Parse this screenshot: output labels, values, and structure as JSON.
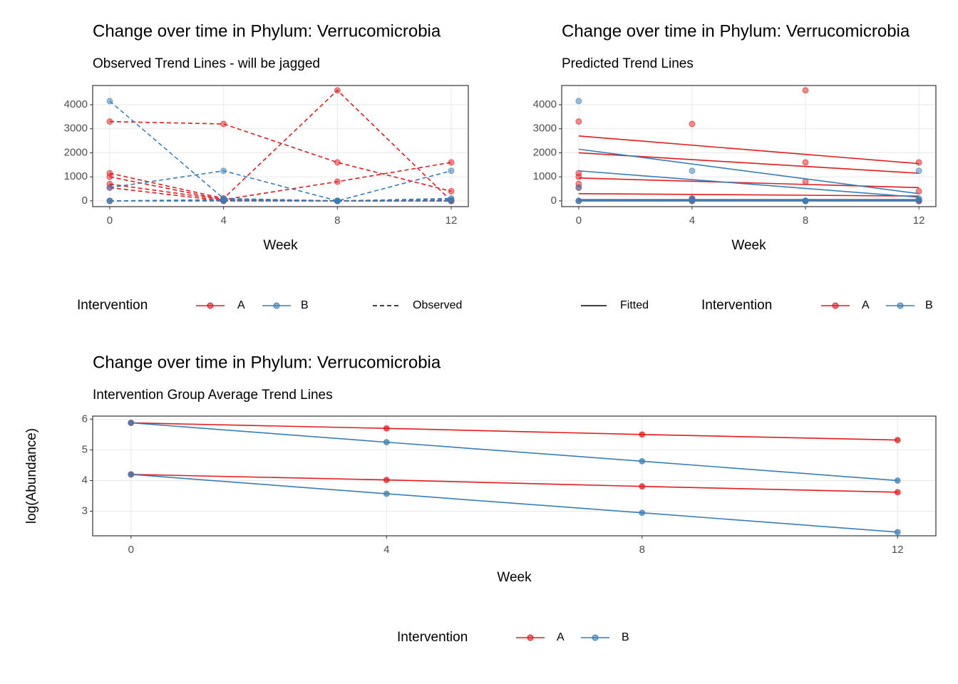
{
  "chart_data": [
    {
      "type": "line",
      "title": "Change over time in Phylum: Verrucomicrobia",
      "subtitle": "Observed Trend Lines - will be jagged",
      "x_label": "Week",
      "x": [
        0,
        4,
        8,
        12
      ],
      "xlim": [
        -0.6,
        12.6
      ],
      "xticks": [
        0,
        4,
        8,
        12
      ],
      "ylim": [
        -240,
        4800
      ],
      "yticks": [
        0,
        1000,
        2000,
        3000,
        4000
      ],
      "grid": true,
      "line_style": "dashed",
      "legend_title": "Intervention",
      "groups": [
        {
          "name": "A",
          "color": "#E41A1C"
        },
        {
          "name": "B",
          "color": "#377EB8"
        }
      ],
      "linetype_legend": "Observed",
      "series": [
        {
          "color": "#E41A1C",
          "values": [
            3300,
            3200,
            1600,
            400
          ]
        },
        {
          "color": "#E41A1C",
          "values": [
            1150,
            100,
            4600,
            0
          ]
        },
        {
          "color": "#E41A1C",
          "values": [
            1000,
            50,
            800,
            1600
          ]
        },
        {
          "color": "#E41A1C",
          "values": [
            700,
            50,
            0,
            0
          ]
        },
        {
          "color": "#E41A1C",
          "values": [
            550,
            0,
            0,
            0
          ]
        },
        {
          "color": "#E41A1C",
          "values": [
            0,
            0,
            0,
            0
          ]
        },
        {
          "color": "#377EB8",
          "values": [
            4150,
            100,
            0,
            0
          ]
        },
        {
          "color": "#377EB8",
          "values": [
            550,
            1250,
            0,
            1250
          ]
        },
        {
          "color": "#377EB8",
          "values": [
            0,
            50,
            0,
            100
          ]
        },
        {
          "color": "#377EB8",
          "values": [
            0,
            0,
            0,
            50
          ]
        }
      ]
    },
    {
      "type": "fitted",
      "title": "Change over time in Phylum: Verrucomicrobia",
      "subtitle": "Predicted Trend Lines",
      "x_label": "Week",
      "x": [
        0,
        4,
        8,
        12
      ],
      "fit_x": [
        0,
        12
      ],
      "xlim": [
        -0.6,
        12.6
      ],
      "xticks": [
        0,
        4,
        8,
        12
      ],
      "ylim": [
        -240,
        4800
      ],
      "yticks": [
        0,
        1000,
        2000,
        3000,
        4000
      ],
      "grid": true,
      "legend_title": "Intervention",
      "groups": [
        {
          "name": "A",
          "color": "#E41A1C"
        },
        {
          "name": "B",
          "color": "#377EB8"
        }
      ],
      "linetype_legend": "Fitted",
      "series": [
        {
          "color": "#E41A1C",
          "values": [
            3300,
            3200,
            1600,
            400
          ],
          "fitted": [
            2700,
            1550
          ]
        },
        {
          "color": "#E41A1C",
          "values": [
            1150,
            100,
            4600,
            0
          ],
          "fitted": [
            2000,
            1150
          ]
        },
        {
          "color": "#E41A1C",
          "values": [
            1000,
            50,
            800,
            1600
          ],
          "fitted": [
            950,
            550
          ]
        },
        {
          "color": "#E41A1C",
          "values": [
            700,
            50,
            0,
            0
          ],
          "fitted": [
            300,
            200
          ]
        },
        {
          "color": "#E41A1C",
          "values": [
            550,
            0,
            0,
            0
          ],
          "fitted": [
            50,
            50
          ]
        },
        {
          "color": "#E41A1C",
          "values": [
            0,
            0,
            0,
            0
          ],
          "fitted": [
            0,
            0
          ]
        },
        {
          "color": "#377EB8",
          "values": [
            4150,
            100,
            0,
            0
          ],
          "fitted": [
            2150,
            300
          ]
        },
        {
          "color": "#377EB8",
          "values": [
            550,
            1250,
            0,
            1250
          ],
          "fitted": [
            1250,
            150
          ]
        },
        {
          "color": "#377EB8",
          "values": [
            0,
            50,
            0,
            100
          ],
          "fitted": [
            50,
            50
          ]
        },
        {
          "color": "#377EB8",
          "values": [
            0,
            0,
            0,
            50
          ],
          "fitted": [
            0,
            0
          ]
        }
      ]
    },
    {
      "type": "line",
      "title": "Change over time in Phylum: Verrucomicrobia",
      "subtitle": "Intervention Group Average Trend Lines",
      "x_label": "Week",
      "y_label": "log(Abundance)",
      "x": [
        0,
        4,
        8,
        12
      ],
      "xlim": [
        -0.6,
        12.6
      ],
      "xticks": [
        0,
        4,
        8,
        12
      ],
      "ylim": [
        2.2,
        6.1
      ],
      "yticks": [
        3,
        4,
        5,
        6
      ],
      "grid": true,
      "line_style": "solid",
      "legend_title": "Intervention",
      "groups": [
        {
          "name": "A",
          "color": "#E41A1C"
        },
        {
          "name": "B",
          "color": "#377EB8"
        }
      ],
      "series": [
        {
          "color": "#E41A1C",
          "values": [
            5.88,
            5.7,
            5.5,
            5.32
          ]
        },
        {
          "color": "#377EB8",
          "values": [
            5.88,
            5.25,
            4.63,
            4.0
          ]
        },
        {
          "color": "#E41A1C",
          "values": [
            4.2,
            4.02,
            3.81,
            3.62
          ]
        },
        {
          "color": "#377EB8",
          "values": [
            4.2,
            3.57,
            2.95,
            2.32
          ]
        }
      ]
    }
  ]
}
